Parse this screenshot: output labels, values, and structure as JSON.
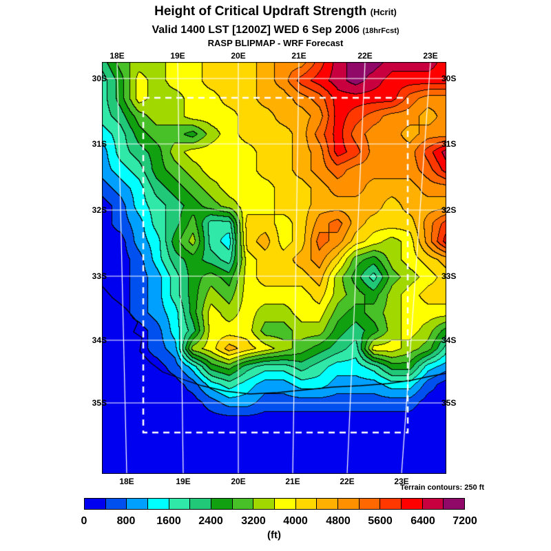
{
  "header": {
    "title": "Height of Critical Updraft Strength",
    "title_suffix": "(Hcrit)",
    "valid": "Valid 1400 LST [1200Z] WED 6 Sep 2006",
    "valid_suffix": "(18hrFcst)",
    "model": "RASP BLIPMAP - WRF Forecast"
  },
  "axes": {
    "lon": [
      "18E",
      "19E",
      "20E",
      "21E",
      "22E",
      "23E"
    ],
    "lat": [
      "30S",
      "31S",
      "32S",
      "33S",
      "34S",
      "35S"
    ]
  },
  "note": "Terrain contours: 250 ft",
  "colorbar": {
    "ticks": [
      "0",
      "800",
      "1600",
      "2400",
      "3200",
      "4000",
      "4800",
      "5600",
      "6400",
      "7200"
    ],
    "unit": "(ft)"
  },
  "chart_data": {
    "type": "heatmap",
    "title": "Height of Critical Updraft Strength (Hcrit)",
    "valid": "Valid 1400 LST [1200Z] WED 6 Sep 2006 (18hrFcst)",
    "model": "RASP BLIPMAP - WRF Forecast",
    "units": "ft",
    "x_ticks": [
      "18E",
      "19E",
      "20E",
      "21E",
      "22E",
      "23E"
    ],
    "y_ticks": [
      "30S",
      "31S",
      "32S",
      "33S",
      "34S",
      "35S"
    ],
    "level_min": 0,
    "level_max": 7200,
    "level_step": 400,
    "terrain_contour_interval_ft": 250,
    "palette": [
      "#0000f0",
      "#0050f0",
      "#00a0ff",
      "#00ffff",
      "#30e8a8",
      "#20c878",
      "#10a010",
      "#48c028",
      "#a0d800",
      "#ffff00",
      "#ffd800",
      "#ffb000",
      "#ff9000",
      "#ff6800",
      "#ff3800",
      "#ff0000",
      "#c80040",
      "#900868"
    ],
    "grid_cols": 20,
    "grid_rows": 24,
    "values_ft": [
      [
        2200,
        3000,
        3400,
        3400,
        3800,
        3800,
        4200,
        4200,
        4200,
        4600,
        5000,
        5000,
        5800,
        6600,
        7000,
        7000,
        6600,
        6600,
        6600,
        6200
      ],
      [
        1800,
        2600,
        3800,
        3400,
        3800,
        3800,
        4200,
        4200,
        4200,
        4600,
        5000,
        5800,
        6200,
        6600,
        7000,
        6600,
        6200,
        6200,
        6200,
        6200
      ],
      [
        1800,
        2600,
        3800,
        3400,
        3400,
        3800,
        3800,
        4200,
        4200,
        4600,
        4600,
        5000,
        5400,
        6200,
        6200,
        6200,
        6200,
        5400,
        5000,
        5000
      ],
      [
        1800,
        2200,
        3000,
        3400,
        3400,
        3800,
        3800,
        3800,
        4200,
        4200,
        4600,
        4600,
        5000,
        6200,
        5800,
        5400,
        5000,
        5000,
        4600,
        5000
      ],
      [
        1400,
        1800,
        2600,
        3000,
        3000,
        2600,
        3400,
        3800,
        4200,
        4200,
        4200,
        4600,
        5400,
        6200,
        5400,
        5000,
        5000,
        4600,
        5000,
        5000
      ],
      [
        1000,
        1800,
        2200,
        2600,
        3400,
        3800,
        3800,
        3800,
        3800,
        4200,
        4200,
        4600,
        5000,
        6200,
        5800,
        5000,
        5000,
        5000,
        5800,
        6600
      ],
      [
        1000,
        1400,
        1800,
        2600,
        3000,
        3400,
        3800,
        3800,
        3800,
        4200,
        4200,
        4600,
        5000,
        5400,
        5000,
        5000,
        5000,
        5000,
        5400,
        6200
      ],
      [
        600,
        1000,
        1400,
        2200,
        2600,
        3000,
        3400,
        3800,
        3800,
        3800,
        4200,
        4200,
        4600,
        5000,
        5000,
        4600,
        4600,
        4600,
        5000,
        5000
      ],
      [
        200,
        600,
        1400,
        1800,
        2200,
        2600,
        3000,
        3400,
        3800,
        3800,
        4200,
        4200,
        4600,
        4600,
        4600,
        4600,
        4200,
        4600,
        4600,
        4600
      ],
      [
        200,
        600,
        1000,
        1800,
        2200,
        3000,
        1800,
        1800,
        4200,
        4200,
        3800,
        4200,
        5000,
        5400,
        4600,
        4200,
        4200,
        4200,
        5000,
        5800
      ],
      [
        200,
        200,
        1000,
        1400,
        2600,
        3400,
        1800,
        1400,
        4200,
        4600,
        3800,
        4200,
        5400,
        5000,
        4200,
        3800,
        3400,
        3800,
        5000,
        6200
      ],
      [
        200,
        200,
        600,
        1400,
        2200,
        2600,
        2200,
        1800,
        3800,
        4200,
        4200,
        4600,
        5000,
        4200,
        3000,
        2600,
        3400,
        3800,
        4200,
        4600
      ],
      [
        200,
        200,
        600,
        1000,
        1800,
        2600,
        3000,
        2600,
        3800,
        4200,
        4200,
        4200,
        4600,
        3400,
        2600,
        1800,
        3000,
        3400,
        3800,
        4200
      ],
      [
        200,
        200,
        600,
        1000,
        1800,
        2600,
        3400,
        3000,
        3800,
        3800,
        3800,
        3800,
        4200,
        3400,
        3000,
        2600,
        3400,
        3800,
        4200,
        4200
      ],
      [
        200,
        200,
        600,
        1000,
        1400,
        2600,
        3800,
        3400,
        3800,
        3400,
        3400,
        3800,
        3800,
        3000,
        2600,
        3000,
        3400,
        3800,
        3800,
        3800
      ],
      [
        200,
        200,
        200,
        600,
        1400,
        2200,
        3800,
        3800,
        3800,
        3000,
        3000,
        3400,
        3400,
        2600,
        2200,
        2600,
        3400,
        3800,
        3400,
        2600
      ],
      [
        200,
        200,
        200,
        600,
        1000,
        3400,
        3800,
        4600,
        4200,
        3800,
        3400,
        3000,
        2600,
        2200,
        1800,
        3800,
        3800,
        3400,
        3000,
        1800
      ],
      [
        200,
        200,
        200,
        200,
        600,
        1400,
        2600,
        3000,
        2200,
        1800,
        1800,
        2200,
        1800,
        1400,
        1400,
        1800,
        2600,
        2600,
        1400,
        1000
      ],
      [
        200,
        200,
        200,
        200,
        200,
        600,
        1400,
        1800,
        1400,
        1000,
        1000,
        1400,
        1400,
        1000,
        1000,
        1000,
        1400,
        1400,
        600,
        200
      ],
      [
        200,
        200,
        200,
        200,
        200,
        200,
        600,
        1000,
        1000,
        600,
        600,
        600,
        600,
        600,
        600,
        600,
        600,
        600,
        200,
        200
      ],
      [
        200,
        200,
        200,
        200,
        200,
        200,
        200,
        200,
        200,
        200,
        200,
        200,
        200,
        200,
        200,
        200,
        200,
        200,
        200,
        200
      ],
      [
        200,
        200,
        200,
        200,
        200,
        200,
        200,
        200,
        200,
        200,
        200,
        200,
        200,
        200,
        200,
        200,
        200,
        200,
        200,
        200
      ],
      [
        200,
        200,
        200,
        200,
        200,
        200,
        200,
        200,
        200,
        200,
        200,
        200,
        200,
        200,
        200,
        200,
        200,
        200,
        200,
        200
      ],
      [
        200,
        200,
        200,
        200,
        200,
        200,
        200,
        200,
        200,
        200,
        200,
        200,
        200,
        200,
        200,
        200,
        200,
        200,
        200,
        200
      ]
    ]
  }
}
